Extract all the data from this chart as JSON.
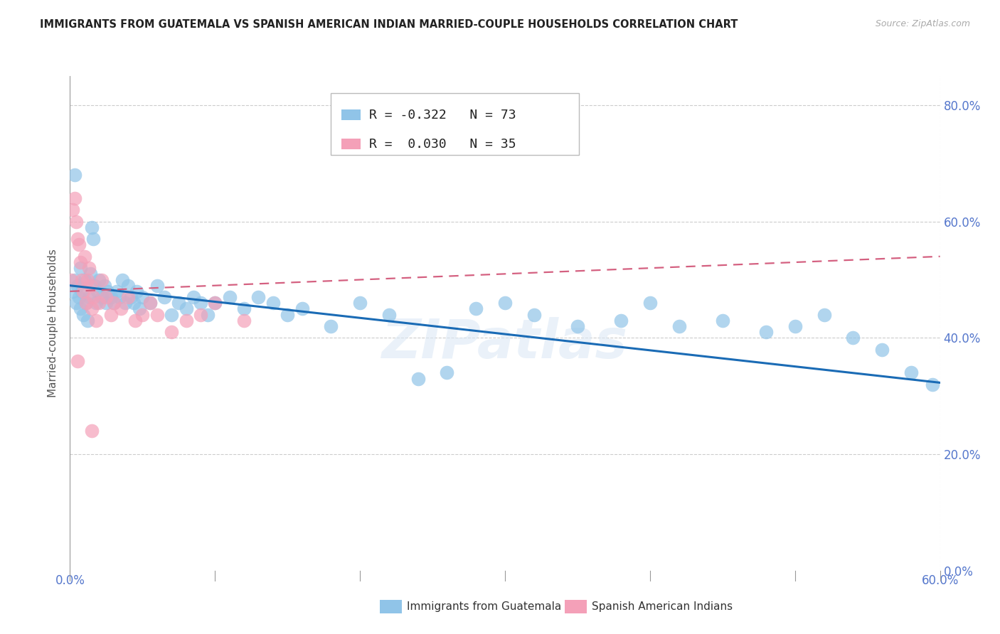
{
  "title": "IMMIGRANTS FROM GUATEMALA VS SPANISH AMERICAN INDIAN MARRIED-COUPLE HOUSEHOLDS CORRELATION CHART",
  "source": "Source: ZipAtlas.com",
  "ylabel": "Married-couple Households",
  "legend_blue_label": "Immigrants from Guatemala",
  "legend_pink_label": "Spanish American Indians",
  "watermark": "ZIPatlas",
  "blue_color": "#90c4e8",
  "blue_line_color": "#1a6bb5",
  "pink_color": "#f4a0b8",
  "pink_line_color": "#d46080",
  "blue_scatter_x": [
    0.002,
    0.003,
    0.004,
    0.005,
    0.006,
    0.007,
    0.008,
    0.009,
    0.01,
    0.011,
    0.012,
    0.013,
    0.014,
    0.015,
    0.016,
    0.017,
    0.018,
    0.019,
    0.02,
    0.022,
    0.024,
    0.025,
    0.026,
    0.028,
    0.03,
    0.032,
    0.034,
    0.036,
    0.038,
    0.04,
    0.042,
    0.044,
    0.046,
    0.048,
    0.05,
    0.055,
    0.06,
    0.065,
    0.07,
    0.075,
    0.08,
    0.085,
    0.09,
    0.095,
    0.1,
    0.11,
    0.12,
    0.13,
    0.14,
    0.15,
    0.16,
    0.18,
    0.2,
    0.22,
    0.24,
    0.26,
    0.28,
    0.3,
    0.32,
    0.35,
    0.38,
    0.4,
    0.42,
    0.45,
    0.48,
    0.5,
    0.52,
    0.54,
    0.56,
    0.58,
    0.595,
    0.003,
    0.007
  ],
  "blue_scatter_y": [
    0.48,
    0.5,
    0.46,
    0.49,
    0.47,
    0.45,
    0.48,
    0.44,
    0.5,
    0.46,
    0.43,
    0.47,
    0.51,
    0.59,
    0.57,
    0.49,
    0.46,
    0.48,
    0.5,
    0.47,
    0.49,
    0.46,
    0.48,
    0.47,
    0.46,
    0.48,
    0.47,
    0.5,
    0.46,
    0.49,
    0.47,
    0.46,
    0.48,
    0.45,
    0.47,
    0.46,
    0.49,
    0.47,
    0.44,
    0.46,
    0.45,
    0.47,
    0.46,
    0.44,
    0.46,
    0.47,
    0.45,
    0.47,
    0.46,
    0.44,
    0.45,
    0.42,
    0.46,
    0.44,
    0.33,
    0.34,
    0.45,
    0.46,
    0.44,
    0.42,
    0.43,
    0.46,
    0.42,
    0.43,
    0.41,
    0.42,
    0.44,
    0.4,
    0.38,
    0.34,
    0.32,
    0.68,
    0.52
  ],
  "pink_scatter_x": [
    0.001,
    0.002,
    0.003,
    0.004,
    0.005,
    0.006,
    0.007,
    0.008,
    0.009,
    0.01,
    0.011,
    0.012,
    0.013,
    0.014,
    0.015,
    0.016,
    0.018,
    0.02,
    0.022,
    0.025,
    0.028,
    0.03,
    0.035,
    0.04,
    0.045,
    0.05,
    0.055,
    0.06,
    0.07,
    0.08,
    0.09,
    0.1,
    0.12,
    0.015,
    0.005
  ],
  "pink_scatter_y": [
    0.5,
    0.62,
    0.64,
    0.6,
    0.57,
    0.56,
    0.53,
    0.5,
    0.48,
    0.54,
    0.46,
    0.5,
    0.52,
    0.49,
    0.45,
    0.47,
    0.43,
    0.46,
    0.5,
    0.47,
    0.44,
    0.46,
    0.45,
    0.47,
    0.43,
    0.44,
    0.46,
    0.44,
    0.41,
    0.43,
    0.44,
    0.46,
    0.43,
    0.24,
    0.36
  ],
  "blue_line_x0": 0.0,
  "blue_line_x1": 0.6,
  "blue_line_y0": 0.49,
  "blue_line_y1": 0.323,
  "pink_line_x0": 0.0,
  "pink_line_x1": 0.6,
  "pink_line_y0": 0.48,
  "pink_line_y1": 0.54,
  "xlim": [
    0.0,
    0.6
  ],
  "ylim": [
    0.0,
    0.85
  ],
  "xtick_vals": [
    0.0,
    0.1,
    0.2,
    0.3,
    0.4,
    0.5,
    0.6
  ],
  "ytick_vals": [
    0.0,
    0.2,
    0.4,
    0.6,
    0.8
  ],
  "background_color": "#ffffff",
  "grid_color": "#cccccc",
  "tick_color": "#5577cc",
  "axis_color": "#999999"
}
